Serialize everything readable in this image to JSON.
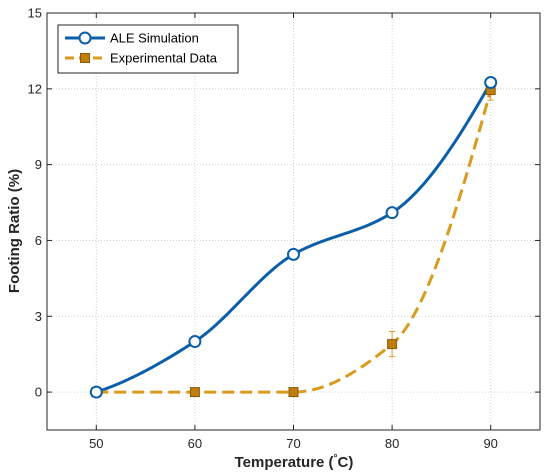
{
  "chart_data": {
    "type": "line",
    "x": [
      50,
      60,
      70,
      80,
      90
    ],
    "xlabel_main": "Temperature (",
    "xlabel_sup": "°",
    "xlabel_end": "C)",
    "ylabel": "Footing Ratio (%)",
    "xlim": [
      45,
      95
    ],
    "ylim": [
      -1.5,
      15
    ],
    "xticks": [
      50,
      60,
      70,
      80,
      90
    ],
    "yticks": [
      0,
      3,
      6,
      9,
      12,
      15
    ],
    "grid": true,
    "legend_position": "top-left",
    "series": [
      {
        "name": "ALE Simulation",
        "values": [
          0.0,
          2.0,
          5.45,
          7.1,
          12.25
        ],
        "color": "#0b5ea8",
        "style": "solid",
        "marker": "circle"
      },
      {
        "name": "Experimental Data",
        "values": [
          0.0,
          0.0,
          0.0,
          1.9,
          11.95
        ],
        "errors": [
          0,
          0,
          0,
          0.5,
          0.4
        ],
        "color": "#d99a1e",
        "style": "dashed",
        "marker": "square"
      }
    ]
  }
}
